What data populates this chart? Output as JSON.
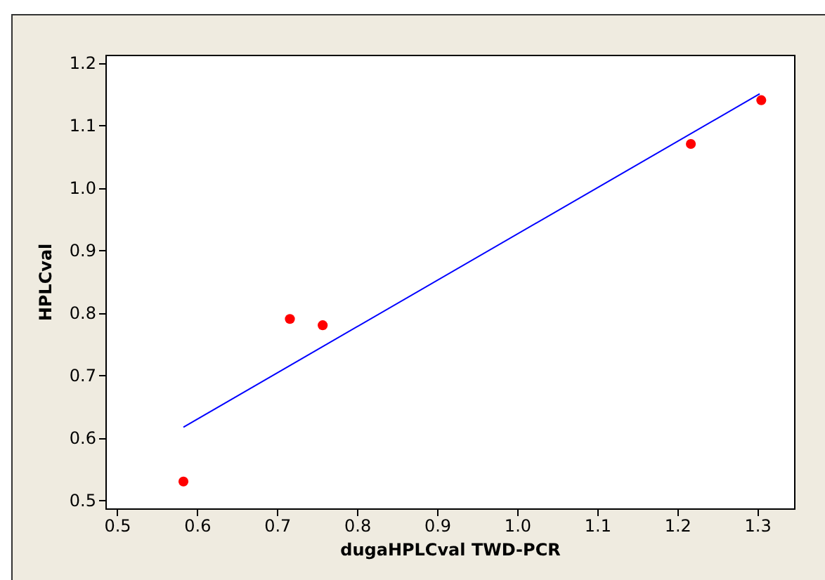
{
  "chart_data": {
    "type": "scatter",
    "xlabel": "dugaHPLCval TWD-PCR",
    "ylabel": "HPLCval",
    "xlim": [
      0.4855,
      1.346
    ],
    "ylim": [
      0.487,
      1.2126
    ],
    "xticks": [
      {
        "value": 0.5,
        "label": "0.5"
      },
      {
        "value": 0.6,
        "label": "0.6"
      },
      {
        "value": 0.7,
        "label": "0.7"
      },
      {
        "value": 0.8,
        "label": "0.8"
      },
      {
        "value": 0.9,
        "label": "0.9"
      },
      {
        "value": 1.0,
        "label": "1.0"
      },
      {
        "value": 1.1,
        "label": "1.1"
      },
      {
        "value": 1.2,
        "label": "1.2"
      },
      {
        "value": 1.3,
        "label": "1.3"
      }
    ],
    "yticks": [
      {
        "value": 0.5,
        "label": "0.5"
      },
      {
        "value": 0.6,
        "label": "0.6"
      },
      {
        "value": 0.7,
        "label": "0.7"
      },
      {
        "value": 0.8,
        "label": "0.8"
      },
      {
        "value": 0.9,
        "label": "0.9"
      },
      {
        "value": 1.0,
        "label": "1.0"
      },
      {
        "value": 1.1,
        "label": "1.1"
      },
      {
        "value": 1.2,
        "label": "1.2"
      }
    ],
    "grid": false,
    "marker": "circle",
    "series": [
      {
        "color": "#ff0000",
        "x": [
          0.583,
          0.716,
          0.757,
          1.217,
          1.305
        ],
        "values": [
          0.53,
          0.79,
          0.78,
          1.07,
          1.14
        ]
      },
      {
        "type": "line",
        "marker": "none",
        "color": "#0000ff",
        "x": [
          0.583,
          1.303
        ],
        "values": [
          0.617,
          1.15
        ]
      }
    ]
  }
}
